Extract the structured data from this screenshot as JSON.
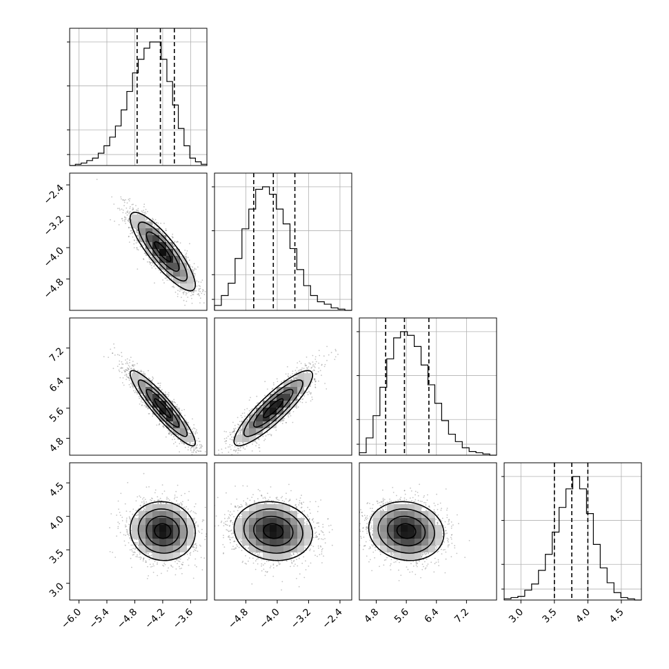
{
  "chart_data": {
    "type": "corner",
    "parameters": [
      {
        "range": [
          -6.2,
          -3.25
        ],
        "ticks": [
          "-6.0",
          "-5.4",
          "-4.8",
          "-4.2",
          "-3.6"
        ],
        "mean": -4.2,
        "sd": 0.35,
        "quantiles": [
          -4.75,
          -4.25,
          -3.95
        ],
        "hist": [
          0.0,
          0.01,
          0.02,
          0.04,
          0.06,
          0.1,
          0.16,
          0.23,
          0.32,
          0.45,
          0.6,
          0.75,
          0.86,
          0.95,
          1.0,
          1.0,
          0.86,
          0.68,
          0.49,
          0.3,
          0.16,
          0.06,
          0.03,
          0.01
        ]
      },
      {
        "range": [
          -5.6,
          -2.1
        ],
        "ticks": [
          "-2.4",
          "-3.2",
          "-4.0",
          "-4.8"
        ],
        "x_ticks": [
          "-4.8",
          "-4.0",
          "-3.2",
          "-2.4"
        ],
        "mean": -4.1,
        "sd": 0.5,
        "quantiles": [
          -4.6,
          -4.1,
          -3.55
        ],
        "hist": [
          0.04,
          0.12,
          0.22,
          0.42,
          0.66,
          0.82,
          0.98,
          1.0,
          0.94,
          0.82,
          0.7,
          0.5,
          0.33,
          0.2,
          0.12,
          0.07,
          0.05,
          0.02,
          0.01,
          0.0
        ]
      },
      {
        "range": [
          4.35,
          8.0
        ],
        "ticks": [
          "7.2",
          "6.4",
          "5.6",
          "4.8"
        ],
        "x_ticks": [
          "4.8",
          "5.6",
          "6.4",
          "7.2"
        ],
        "mean": 5.6,
        "sd": 0.5,
        "quantiles": [
          5.05,
          5.55,
          6.2
        ],
        "hist": [
          0.02,
          0.14,
          0.32,
          0.55,
          0.78,
          0.95,
          1.0,
          0.97,
          0.88,
          0.73,
          0.57,
          0.42,
          0.28,
          0.17,
          0.11,
          0.06,
          0.03,
          0.02,
          0.01,
          0.0
        ]
      },
      {
        "range": [
          2.75,
          4.8
        ],
        "ticks": [
          "4.5",
          "4.0",
          "3.5",
          "3.0"
        ],
        "x_ticks": [
          "3.0",
          "3.5",
          "4.0",
          "4.5"
        ],
        "mean": 3.78,
        "sd": 0.22,
        "quantiles": [
          3.5,
          3.76,
          4.0
        ],
        "hist": [
          0.01,
          0.02,
          0.03,
          0.08,
          0.13,
          0.24,
          0.37,
          0.55,
          0.75,
          0.9,
          1.0,
          0.9,
          0.7,
          0.45,
          0.26,
          0.14,
          0.06,
          0.02,
          0.01,
          0.0
        ]
      }
    ],
    "correlations": [
      [
        1.0,
        -0.85,
        -0.92,
        -0.05
      ],
      [
        -0.85,
        1.0,
        0.88,
        -0.1
      ],
      [
        -0.92,
        0.88,
        1.0,
        -0.1
      ],
      [
        -0.05,
        -0.1,
        -0.1,
        1.0
      ]
    ],
    "quantiles": [
      0.16,
      0.5,
      0.84
    ],
    "grid": true
  }
}
